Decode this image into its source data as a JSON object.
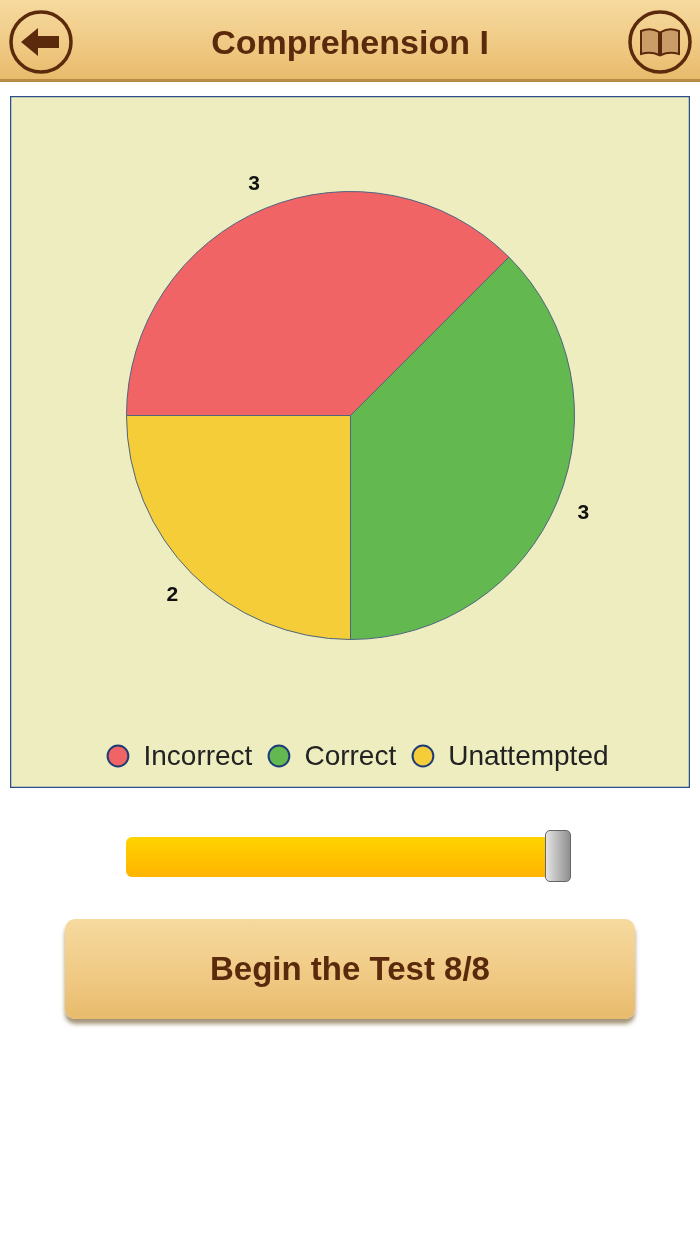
{
  "chart_data": {
    "type": "pie",
    "title": "Comprehension I",
    "categories": [
      "Incorrect",
      "Correct",
      "Unattempted"
    ],
    "values": [
      3,
      3,
      2
    ],
    "colors": [
      "#f06466",
      "#63b84f",
      "#f5cd38"
    ],
    "data_labels": true,
    "legend": "bottom",
    "annotations": [
      "Begin the Test 8/8"
    ]
  }
}
